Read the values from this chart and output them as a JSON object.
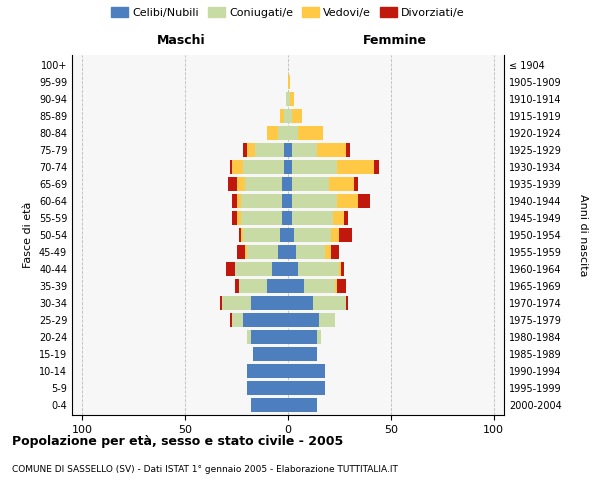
{
  "age_groups": [
    "0-4",
    "5-9",
    "10-14",
    "15-19",
    "20-24",
    "25-29",
    "30-34",
    "35-39",
    "40-44",
    "45-49",
    "50-54",
    "55-59",
    "60-64",
    "65-69",
    "70-74",
    "75-79",
    "80-84",
    "85-89",
    "90-94",
    "95-99",
    "100+"
  ],
  "birth_years": [
    "2000-2004",
    "1995-1999",
    "1990-1994",
    "1985-1989",
    "1980-1984",
    "1975-1979",
    "1970-1974",
    "1965-1969",
    "1960-1964",
    "1955-1959",
    "1950-1954",
    "1945-1949",
    "1940-1944",
    "1935-1939",
    "1930-1934",
    "1925-1929",
    "1920-1924",
    "1915-1919",
    "1910-1914",
    "1905-1909",
    "≤ 1904"
  ],
  "male": {
    "celibi": [
      18,
      20,
      20,
      17,
      18,
      22,
      18,
      10,
      8,
      5,
      4,
      3,
      3,
      3,
      2,
      2,
      0,
      0,
      0,
      0,
      0
    ],
    "coniugati": [
      0,
      0,
      0,
      0,
      2,
      5,
      14,
      14,
      18,
      15,
      18,
      20,
      20,
      18,
      20,
      14,
      5,
      2,
      1,
      0,
      0
    ],
    "vedovi": [
      0,
      0,
      0,
      0,
      0,
      0,
      0,
      0,
      0,
      1,
      1,
      2,
      2,
      4,
      5,
      4,
      5,
      2,
      0,
      0,
      0
    ],
    "divorziati": [
      0,
      0,
      0,
      0,
      0,
      1,
      1,
      2,
      4,
      4,
      1,
      2,
      2,
      4,
      1,
      2,
      0,
      0,
      0,
      0,
      0
    ]
  },
  "female": {
    "nubili": [
      14,
      18,
      18,
      14,
      14,
      15,
      12,
      8,
      5,
      4,
      3,
      2,
      2,
      2,
      2,
      2,
      0,
      0,
      0,
      0,
      0
    ],
    "coniugate": [
      0,
      0,
      0,
      0,
      2,
      8,
      16,
      15,
      20,
      14,
      18,
      20,
      22,
      18,
      22,
      12,
      5,
      2,
      1,
      0,
      0
    ],
    "vedove": [
      0,
      0,
      0,
      0,
      0,
      0,
      0,
      1,
      1,
      3,
      4,
      5,
      10,
      12,
      18,
      14,
      12,
      5,
      2,
      1,
      0
    ],
    "divorziate": [
      0,
      0,
      0,
      0,
      0,
      0,
      1,
      4,
      1,
      4,
      6,
      2,
      6,
      2,
      2,
      2,
      0,
      0,
      0,
      0,
      0
    ]
  },
  "colors": {
    "celibi": "#4d7fbe",
    "coniugati": "#c8dba4",
    "vedovi": "#ffc845",
    "divorziati": "#c0180c"
  },
  "title": "Popolazione per età, sesso e stato civile - 2005",
  "subtitle": "COMUNE DI SASSELLO (SV) - Dati ISTAT 1° gennaio 2005 - Elaborazione TUTTITALIA.IT",
  "ylabel_left": "Fasce di età",
  "ylabel_right": "Anni di nascita",
  "xlabel_left": "Maschi",
  "xlabel_right": "Femmine",
  "xlim": 105,
  "background_color": "#ffffff"
}
